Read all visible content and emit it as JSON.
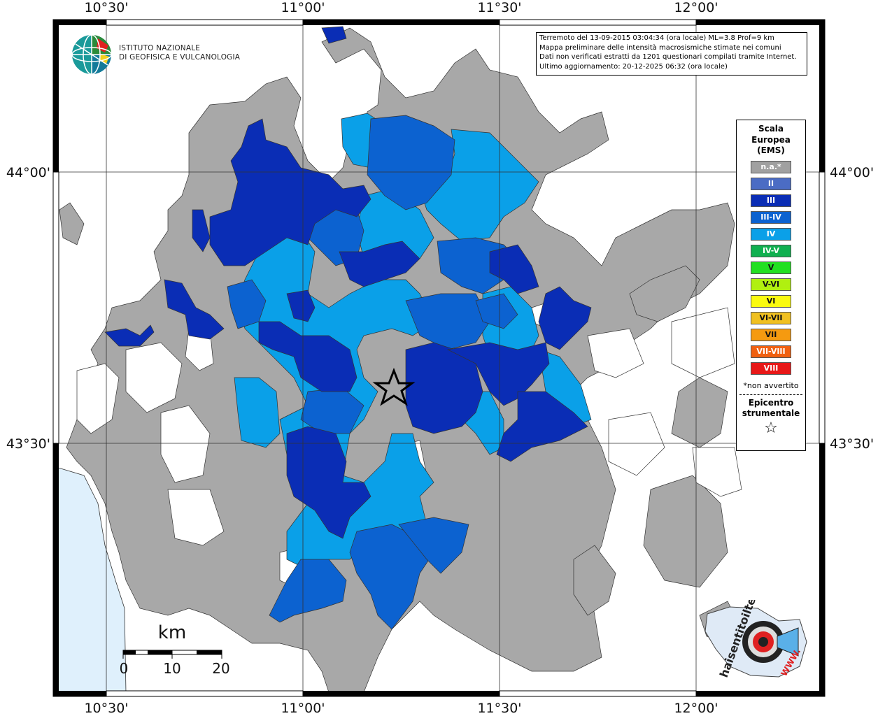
{
  "header": {
    "info_lines": [
      "Terremoto del 13-09-2015 03:04:34 (ora locale) ML=3.8 Prof=9 km",
      "Mappa preliminare delle intensità macrosismiche stimate nei comuni",
      "Dati non verificati estratti da 1201 questionari compilati tramite Internet.",
      "Ultimo aggiornamento: 20-12-2025 06:32 (ora locale)"
    ]
  },
  "logo": {
    "line1": "ISTITUTO NAZIONALE",
    "line2": "DI GEOFISICA E VULCANOLOGIA",
    "icon": "ingv-globe-icon"
  },
  "axes": {
    "longitude_labels": [
      "10°30'",
      "11°00'",
      "11°30'",
      "12°00'"
    ],
    "latitude_labels": [
      "44°00'",
      "43°30'"
    ]
  },
  "legend": {
    "title": "Scala Europea (EMS)",
    "title_lines": [
      "Scala",
      "Europea",
      "(EMS)"
    ],
    "items": [
      {
        "label": "n.a.*",
        "color": "#a0a0a0"
      },
      {
        "label": "II",
        "color": "#4b6cc4"
      },
      {
        "label": "III",
        "color": "#0a2db5"
      },
      {
        "label": "III-IV",
        "color": "#0c62d0"
      },
      {
        "label": "IV",
        "color": "#0aa0e8"
      },
      {
        "label": "IV-V",
        "color": "#10b050"
      },
      {
        "label": "V",
        "color": "#22e022"
      },
      {
        "label": "V-VI",
        "color": "#b0f010"
      },
      {
        "label": "VI",
        "color": "#fafa10"
      },
      {
        "label": "VI-VII",
        "color": "#f0c020"
      },
      {
        "label": "VII",
        "color": "#f59a10"
      },
      {
        "label": "VII-VIII",
        "color": "#f06010"
      },
      {
        "label": "VIII",
        "color": "#e81818"
      }
    ],
    "note": "*non avvertito",
    "epicenter_lines": [
      "Epicentro",
      "strumentale"
    ],
    "epicenter_symbol": "☆"
  },
  "scale_bar": {
    "unit": "km",
    "ticks": [
      "0",
      "10",
      "20"
    ]
  },
  "watermark": {
    "text": "haisentitoilterremoto.it",
    "url": "WWW."
  },
  "colors": {
    "sea": "#dff0fc",
    "land_na": "#a8a8a8",
    "border": "#333333",
    "not_felt": "#ffffff"
  }
}
